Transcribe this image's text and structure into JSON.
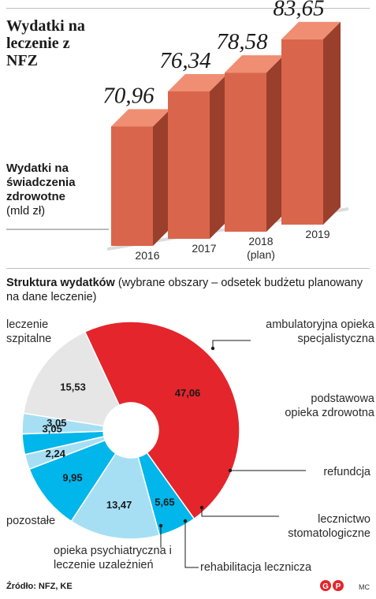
{
  "bar_chart": {
    "title": "Wydatki na leczenie z NFZ",
    "subtitle_bold": "Wydatki na świadczenia zdrowotne",
    "unit": "(mld zł)",
    "colors": {
      "front": "#d9664c",
      "side": "#9a3f2c",
      "top": "#ef8e72",
      "floor": "#9a9a9a"
    }
  },
  "pie_chart": {
    "title_bold": "Struktura wydatków",
    "subtitle": "(wybrane obszary – odsetek budżetu planowany na dane leczenie)",
    "labels": {
      "szpitalne": "leczenie szpitalne",
      "ambulatoryjna": "ambulatoryjna opieka specjalistyczna",
      "podstawowa": "podstawowa opieka zdrowotna",
      "refundacja": "refundcja",
      "stomatologiczne": "lecznictwo stomatologiczne",
      "rehabilitacja": "rehabilitacja lecznicza",
      "psychiatryczna": "opieka psychiatryczna i leczenie uzależnień",
      "pozostale": "pozostałe"
    }
  },
  "chart_data": [
    {
      "type": "bar",
      "categories": [
        "2016",
        "2017",
        "2018 (plan)",
        "2019"
      ],
      "values": [
        70.96,
        76.34,
        78.58,
        83.65
      ],
      "value_labels": [
        "70,96",
        "76,34",
        "78,58",
        "83,65"
      ],
      "title": "Wydatki na leczenie z NFZ",
      "ylabel": "Wydatki na świadczenia zdrowotne (mld zł)"
    },
    {
      "type": "pie",
      "title": "Struktura wydatków",
      "slices": [
        {
          "key": "szpitalne",
          "value": 47.06,
          "label": "47,06",
          "color": "#e4252c"
        },
        {
          "key": "ambulatoryjna",
          "value": 5.65,
          "label": "5,65",
          "color": "#00b6ea"
        },
        {
          "key": "podstawowa",
          "value": 13.47,
          "label": "13,47",
          "color": "#a6dff4"
        },
        {
          "key": "refundacja",
          "value": 9.95,
          "label": "9,95",
          "color": "#00b6ea"
        },
        {
          "key": "stomatologiczne",
          "value": 2.24,
          "label": "2,24",
          "color": "#a6dff4"
        },
        {
          "key": "rehabilitacja",
          "value": 3.05,
          "label": "3,05",
          "color": "#00b6ea"
        },
        {
          "key": "psychiatryczna",
          "value": 3.05,
          "label": "3,05",
          "color": "#a6dff4"
        },
        {
          "key": "pozostale",
          "value": 15.53,
          "label": "15,53",
          "color": "#e6e6e6"
        }
      ]
    }
  ],
  "footer": {
    "source": "Źródło: NFZ, KE",
    "author": "MC",
    "logo_color": "#e4252c"
  }
}
